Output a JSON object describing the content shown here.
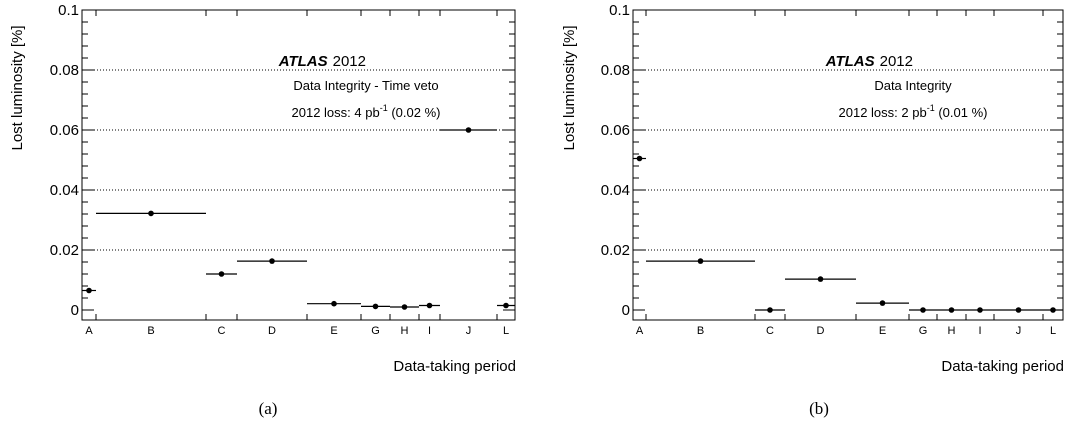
{
  "chart_data": [
    {
      "type": "scatter",
      "panel_label": "(a)",
      "ylabel": "Lost luminosity [%]",
      "xlabel": "Data-taking period",
      "ylim": [
        0,
        0.1
      ],
      "yticks": [
        "0",
        "0.02",
        "0.04",
        "0.06",
        "0.08",
        "0.1"
      ],
      "grid": "horizontal dotted",
      "annotations": {
        "experiment": "ATLAS",
        "year": "2012",
        "title": "Data Integrity - Time veto",
        "loss_prefix": "2012 loss: 4 pb",
        "loss_exp": "-1",
        "loss_suffix": " (0.02 %)"
      },
      "categories": [
        "A",
        "B",
        "C",
        "D",
        "E",
        "G",
        "H",
        "I",
        "J",
        "L"
      ],
      "values": [
        0.0065,
        0.0322,
        0.012,
        0.0163,
        0.0021,
        0.0012,
        0.001,
        0.0015,
        0.06,
        0.0015
      ]
    },
    {
      "type": "scatter",
      "panel_label": "(b)",
      "ylabel": "Lost luminosity [%]",
      "xlabel": "Data-taking period",
      "ylim": [
        0,
        0.1
      ],
      "yticks": [
        "0",
        "0.02",
        "0.04",
        "0.06",
        "0.08",
        "0.1"
      ],
      "grid": "horizontal dotted",
      "annotations": {
        "experiment": "ATLAS",
        "year": "2012",
        "title": "Data Integrity",
        "loss_prefix": "2012 loss: 2 pb",
        "loss_exp": "-1",
        "loss_suffix": " (0.01 %)"
      },
      "categories": [
        "A",
        "B",
        "C",
        "D",
        "E",
        "G",
        "H",
        "I",
        "J",
        "L"
      ],
      "values": [
        0.0505,
        0.0163,
        0.0,
        0.0103,
        0.0023,
        0.0,
        0.0,
        0.0,
        0.0,
        0.0
      ]
    }
  ]
}
